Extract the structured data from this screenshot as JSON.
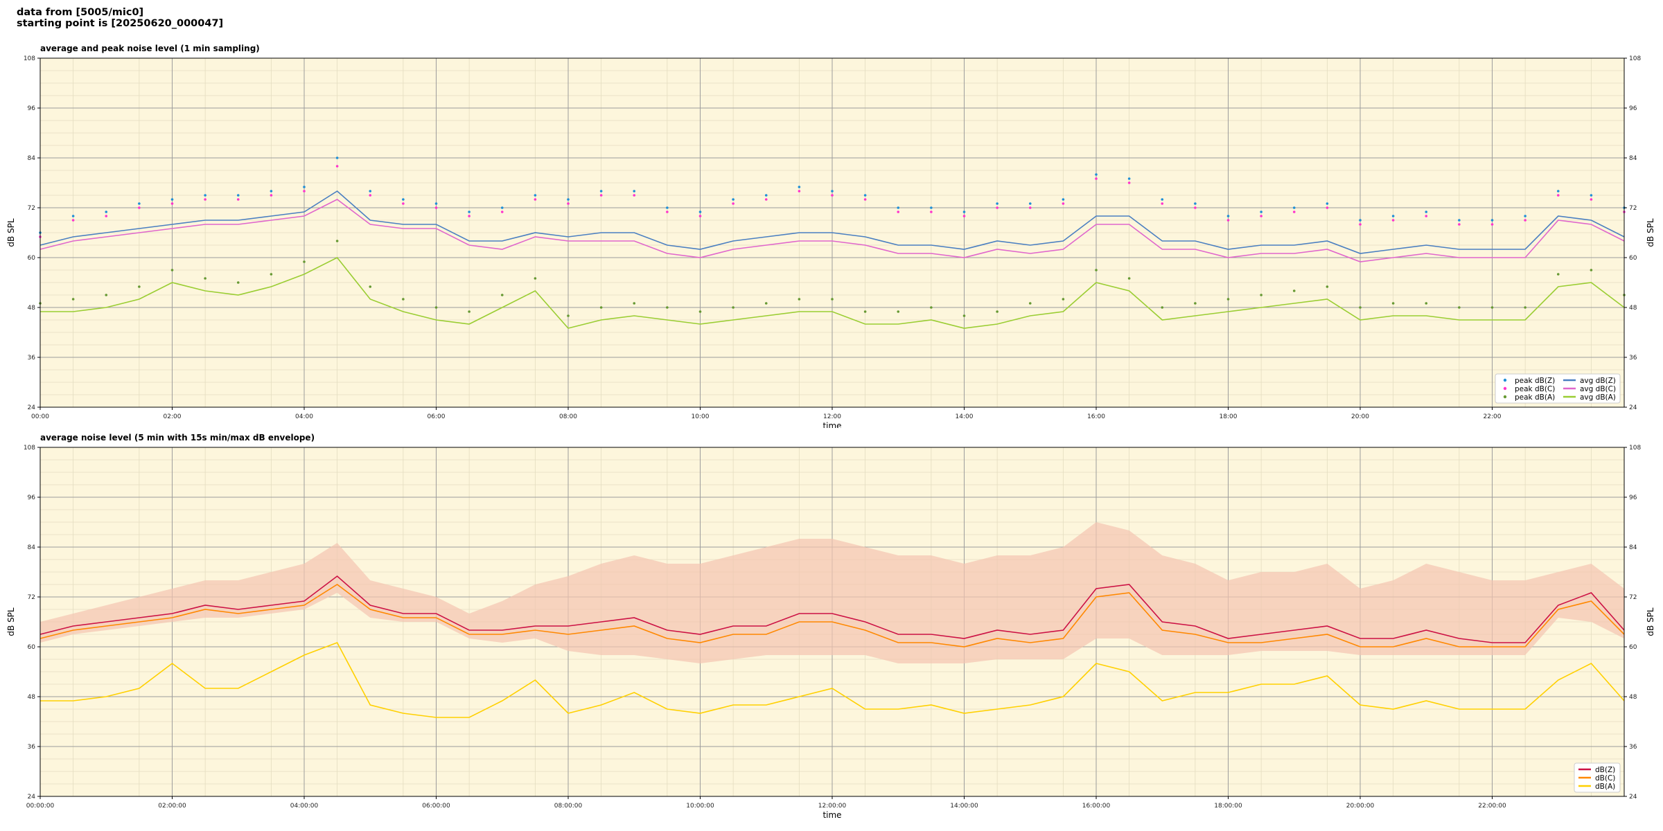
{
  "header": {
    "line1": "data from [5005/mic0]",
    "line2": "starting point is [20250620_000047]"
  },
  "chart_data": [
    {
      "type": "line",
      "title": "average and peak noise level (1 min sampling)",
      "xlabel": "time",
      "ylabel": "dB SPL",
      "ylim": [
        24,
        108
      ],
      "xlim_hours": [
        0,
        24
      ],
      "x_tick_labels": [
        "00:00",
        "02:00",
        "04:00",
        "06:00",
        "08:00",
        "10:00",
        "12:00",
        "14:00",
        "16:00",
        "18:00",
        "20:00",
        "22:00"
      ],
      "y_ticks": [
        24,
        36,
        48,
        60,
        72,
        84,
        96,
        108
      ],
      "grid": true,
      "background": "#fdf6dc",
      "legend_position": "bottom-right",
      "x_hours": [
        0,
        0.5,
        1,
        1.5,
        2,
        2.5,
        3,
        3.5,
        4,
        4.5,
        5,
        5.5,
        6,
        6.5,
        7,
        7.5,
        8,
        8.5,
        9,
        9.5,
        10,
        10.5,
        11,
        11.5,
        12,
        12.5,
        13,
        13.5,
        14,
        14.5,
        15,
        15.5,
        16,
        16.5,
        17,
        17.5,
        18,
        18.5,
        19,
        19.5,
        20,
        20.5,
        21,
        21.5,
        22,
        22.5,
        23,
        23.5,
        24
      ],
      "series": [
        {
          "name": "avg dB(Z)",
          "kind": "line",
          "color": "#4a7fc1",
          "values": [
            63,
            65,
            66,
            67,
            68,
            69,
            69,
            70,
            71,
            76,
            69,
            68,
            68,
            64,
            64,
            66,
            65,
            66,
            66,
            63,
            62,
            64,
            65,
            66,
            66,
            65,
            63,
            63,
            62,
            64,
            63,
            64,
            70,
            70,
            64,
            64,
            62,
            63,
            63,
            64,
            61,
            62,
            63,
            62,
            62,
            62,
            70,
            69,
            65
          ]
        },
        {
          "name": "avg dB(C)",
          "kind": "line",
          "color": "#e066cc",
          "values": [
            62,
            64,
            65,
            66,
            67,
            68,
            68,
            69,
            70,
            74,
            68,
            67,
            67,
            63,
            62,
            65,
            64,
            64,
            64,
            61,
            60,
            62,
            63,
            64,
            64,
            63,
            61,
            61,
            60,
            62,
            61,
            62,
            68,
            68,
            62,
            62,
            60,
            61,
            61,
            62,
            59,
            60,
            61,
            60,
            60,
            60,
            69,
            68,
            64
          ]
        },
        {
          "name": "avg dB(A)",
          "kind": "line",
          "color": "#9acd32",
          "values": [
            47,
            47,
            48,
            50,
            54,
            52,
            51,
            53,
            56,
            60,
            50,
            47,
            45,
            44,
            48,
            52,
            43,
            45,
            46,
            45,
            44,
            45,
            46,
            47,
            47,
            44,
            44,
            45,
            43,
            44,
            46,
            47,
            54,
            52,
            45,
            46,
            47,
            48,
            49,
            50,
            45,
            46,
            46,
            45,
            45,
            45,
            53,
            54,
            48
          ]
        },
        {
          "name": "peak dB(Z)",
          "kind": "scatter",
          "color": "#1f8fd6",
          "values": [
            66,
            70,
            71,
            73,
            74,
            75,
            75,
            76,
            77,
            84,
            76,
            74,
            73,
            71,
            72,
            75,
            74,
            76,
            76,
            72,
            71,
            74,
            75,
            77,
            76,
            75,
            72,
            72,
            71,
            73,
            73,
            74,
            80,
            79,
            74,
            73,
            70,
            71,
            72,
            73,
            69,
            70,
            71,
            69,
            69,
            70,
            76,
            75,
            72
          ]
        },
        {
          "name": "peak dB(C)",
          "kind": "scatter",
          "color": "#ff33cc",
          "values": [
            65,
            69,
            70,
            72,
            73,
            74,
            74,
            75,
            76,
            82,
            75,
            73,
            72,
            70,
            71,
            74,
            73,
            75,
            75,
            71,
            70,
            73,
            74,
            76,
            75,
            74,
            71,
            71,
            70,
            72,
            72,
            73,
            79,
            78,
            73,
            72,
            69,
            70,
            71,
            72,
            68,
            69,
            70,
            68,
            68,
            69,
            75,
            74,
            71
          ]
        },
        {
          "name": "peak dB(A)",
          "kind": "scatter",
          "color": "#669933",
          "values": [
            49,
            50,
            51,
            53,
            57,
            55,
            54,
            56,
            59,
            64,
            53,
            50,
            48,
            47,
            51,
            55,
            46,
            48,
            49,
            48,
            47,
            48,
            49,
            50,
            50,
            47,
            47,
            48,
            46,
            47,
            49,
            50,
            57,
            55,
            48,
            49,
            50,
            51,
            52,
            53,
            48,
            49,
            49,
            48,
            48,
            48,
            56,
            57,
            51
          ]
        }
      ]
    },
    {
      "type": "line",
      "title": "average noise level (5 min with 15s min/max dB envelope)",
      "xlabel": "time",
      "ylabel": "dB SPL",
      "ylim": [
        24,
        108
      ],
      "xlim_hours": [
        0,
        24
      ],
      "x_tick_labels": [
        "00:00:00",
        "02:00:00",
        "04:00:00",
        "06:00:00",
        "08:00:00",
        "10:00:00",
        "12:00:00",
        "14:00:00",
        "16:00:00",
        "18:00:00",
        "20:00:00",
        "22:00:00"
      ],
      "y_ticks": [
        24,
        36,
        48,
        60,
        72,
        84,
        96,
        108
      ],
      "grid": true,
      "background": "#fdf6dc",
      "legend_position": "bottom-right",
      "x_hours": [
        0,
        0.5,
        1,
        1.5,
        2,
        2.5,
        3,
        3.5,
        4,
        4.5,
        5,
        5.5,
        6,
        6.5,
        7,
        7.5,
        8,
        8.5,
        9,
        9.5,
        10,
        10.5,
        11,
        11.5,
        12,
        12.5,
        13,
        13.5,
        14,
        14.5,
        15,
        15.5,
        16,
        16.5,
        17,
        17.5,
        18,
        18.5,
        19,
        19.5,
        20,
        20.5,
        21,
        21.5,
        22,
        22.5,
        23,
        23.5,
        24
      ],
      "envelope": {
        "color": "#f4c4b0",
        "max": [
          66,
          68,
          70,
          72,
          74,
          76,
          76,
          78,
          80,
          85,
          76,
          74,
          72,
          68,
          71,
          75,
          77,
          80,
          82,
          80,
          80,
          82,
          84,
          86,
          86,
          84,
          82,
          82,
          80,
          82,
          82,
          84,
          90,
          88,
          82,
          80,
          76,
          78,
          78,
          80,
          74,
          76,
          80,
          78,
          76,
          76,
          78,
          80,
          74
        ],
        "min": [
          61,
          63,
          64,
          65,
          66,
          67,
          67,
          68,
          69,
          73,
          67,
          66,
          66,
          62,
          61,
          62,
          59,
          58,
          58,
          57,
          56,
          57,
          58,
          58,
          58,
          58,
          56,
          56,
          56,
          57,
          57,
          57,
          62,
          62,
          58,
          58,
          58,
          59,
          59,
          59,
          58,
          58,
          58,
          58,
          58,
          58,
          67,
          66,
          62
        ]
      },
      "series": [
        {
          "name": "dB(Z)",
          "color": "#cc1144",
          "values": [
            63,
            65,
            66,
            67,
            68,
            70,
            69,
            70,
            71,
            77,
            70,
            68,
            68,
            64,
            64,
            65,
            65,
            66,
            67,
            64,
            63,
            65,
            65,
            68,
            68,
            66,
            63,
            63,
            62,
            64,
            63,
            64,
            74,
            75,
            66,
            65,
            62,
            63,
            64,
            65,
            62,
            62,
            64,
            62,
            61,
            61,
            70,
            73,
            64
          ]
        },
        {
          "name": "dB(C)",
          "color": "#ff8800",
          "values": [
            62,
            64,
            65,
            66,
            67,
            69,
            68,
            69,
            70,
            75,
            69,
            67,
            67,
            63,
            63,
            64,
            63,
            64,
            65,
            62,
            61,
            63,
            63,
            66,
            66,
            64,
            61,
            61,
            60,
            62,
            61,
            62,
            72,
            73,
            64,
            63,
            61,
            61,
            62,
            63,
            60,
            60,
            62,
            60,
            60,
            60,
            69,
            71,
            63
          ]
        },
        {
          "name": "dB(A)",
          "color": "#ffd000",
          "values": [
            47,
            47,
            48,
            50,
            56,
            50,
            50,
            54,
            58,
            61,
            46,
            44,
            43,
            43,
            47,
            52,
            44,
            46,
            49,
            45,
            44,
            46,
            46,
            48,
            50,
            45,
            45,
            46,
            44,
            45,
            46,
            48,
            56,
            54,
            47,
            49,
            49,
            51,
            51,
            53,
            46,
            45,
            47,
            45,
            45,
            45,
            52,
            56,
            47
          ]
        }
      ]
    }
  ]
}
